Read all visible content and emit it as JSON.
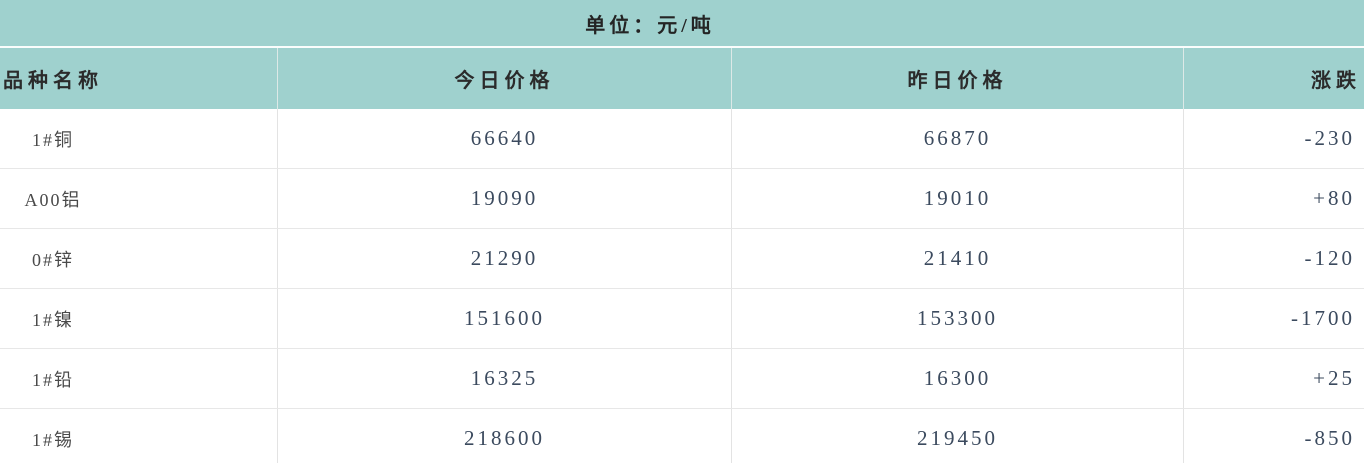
{
  "unit_bar": {
    "label": "单位：元/吨"
  },
  "table": {
    "columns": [
      {
        "label": "品种名称"
      },
      {
        "label": "今日价格"
      },
      {
        "label": "昨日价格"
      },
      {
        "label": "涨跌"
      }
    ],
    "rows": [
      {
        "name": "1#铜",
        "today": "66640",
        "yesterday": "66870",
        "change": "-230"
      },
      {
        "name": "A00铝",
        "today": "19090",
        "yesterday": "19010",
        "change": "+80"
      },
      {
        "name": "0#锌",
        "today": "21290",
        "yesterday": "21410",
        "change": "-120"
      },
      {
        "name": "1#镍",
        "today": "151600",
        "yesterday": "153300",
        "change": "-1700"
      },
      {
        "name": "1#铅",
        "today": "16325",
        "yesterday": "16300",
        "change": "+25"
      },
      {
        "name": "1#锡",
        "today": "218600",
        "yesterday": "219450",
        "change": "-850"
      }
    ]
  },
  "chart_data": {
    "type": "table",
    "title": "单位：元/吨",
    "columns": [
      "品种名称",
      "今日价格",
      "昨日价格",
      "涨跌"
    ],
    "rows": [
      [
        "1#铜",
        66640,
        66870,
        -230
      ],
      [
        "A00铝",
        19090,
        19010,
        80
      ],
      [
        "0#锌",
        21290,
        21410,
        -120
      ],
      [
        "1#镍",
        151600,
        153300,
        -1700
      ],
      [
        "1#铅",
        16325,
        16300,
        25
      ],
      [
        "1#锡",
        218600,
        219450,
        -850
      ]
    ]
  },
  "colors": {
    "header_bg": "#9fd1ce",
    "header_text": "#2b2b2b",
    "price_text": "#3b4a5e",
    "name_text": "#4a4a4a",
    "row_divider": "#e7e7e7",
    "column_divider": "#e3e3e3"
  }
}
